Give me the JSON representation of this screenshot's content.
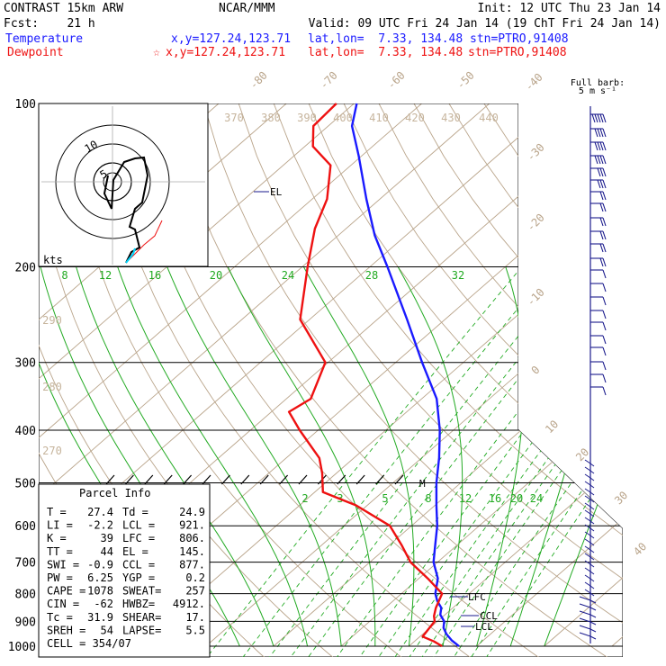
{
  "header": {
    "model": "CONTRAST 15km ARW",
    "center": "NCAR/MMM",
    "init": "Init: 12 UTC Thu 23 Jan 14",
    "fcst": "Fcst:    21 h",
    "valid": "Valid: 09 UTC Fri 24 Jan 14 (19 ChT Fri 24 Jan 14)",
    "temp_label": "Temperature",
    "temp_xy": "x,y=127.24,123.71",
    "temp_latlon": "lat,lon=  7.33, 134.48",
    "temp_stn": "stn=PTRO,91408",
    "dew_label": "Dewpoint",
    "dew_xy": "x,y=127.24,123.71",
    "dew_latlon": "lat,lon=  7.33, 134.48",
    "dew_stn": "stn=PTRO,91408",
    "full_barb": "Full barb:",
    "barb_unit": "5 m s⁻¹",
    "star_icon": "star-icon"
  },
  "colors": {
    "temperature": "#1a1aff",
    "dewpoint": "#ee1111",
    "isotherm": "#b9a48a",
    "mixing_ratio": "#22aa22",
    "wind": "#1a1a8c",
    "hodograph_trace": "#000000",
    "hodograph_low": "#00d8ff"
  },
  "hodograph": {
    "units": "kts",
    "ring_labels": [
      "5",
      "10"
    ]
  },
  "parcel_info": {
    "title": "Parcel Info",
    "rows": [
      [
        "T  =",
        "27.4",
        "Td =",
        "24.9"
      ],
      [
        "LI =",
        "-2.2",
        "LCL =",
        "921."
      ],
      [
        "K  =",
        "39",
        "LFC =",
        "806."
      ],
      [
        "TT =",
        "44",
        "EL =",
        "145."
      ],
      [
        "SWI =",
        "-0.9",
        "CCL =",
        "877."
      ],
      [
        "PW =",
        "6.25",
        "YGP =",
        "0.2"
      ],
      [
        "CAPE =",
        "1078",
        "SWEAT=",
        "257"
      ],
      [
        "CIN =",
        "-62",
        "HWBZ=",
        "4912."
      ],
      [
        "Tc =",
        "31.9",
        "SHEAR=",
        "17."
      ],
      [
        "SREH =",
        "54",
        "LAPSE=",
        "5.5"
      ],
      [
        "CELL = 354/07",
        "",
        "",
        ""
      ]
    ]
  },
  "level_markers": {
    "el": "EL",
    "lfc": "LFC",
    "ccl": "CCL",
    "lcl": "LCL",
    "m": "M"
  },
  "chart_data": {
    "type": "line",
    "title": "CONTRAST 15km ARW",
    "ylabel": "",
    "xlabel": "",
    "pressure_levels": [
      "100",
      "200",
      "300",
      "400",
      "500",
      "600",
      "700",
      "800",
      "900",
      "1000"
    ],
    "isotherm_labels": [
      "-80",
      "-70",
      "-60",
      "-50",
      "-40",
      "-30",
      "-20",
      "-10",
      "0",
      "10",
      "20",
      "30",
      "40"
    ],
    "theta_labels": [
      "370",
      "380",
      "390",
      "400",
      "410",
      "420",
      "430",
      "440",
      "290",
      "280",
      "270"
    ],
    "mixing_ratio_upper": [
      "8",
      "12",
      "16",
      "20",
      "24",
      "28",
      "32"
    ],
    "mixing_ratio_lower": [
      "2",
      "3",
      "5",
      "8",
      "12",
      "16",
      "20",
      "24"
    ],
    "series": [
      {
        "name": "Temperature",
        "color": "#1a1aff",
        "points": [
          [
            1000,
            27.4
          ],
          [
            975,
            25.3
          ],
          [
            950,
            23.5
          ],
          [
            925,
            22.0
          ],
          [
            900,
            21.0
          ],
          [
            875,
            19.3
          ],
          [
            850,
            18.3
          ],
          [
            825,
            16.5
          ],
          [
            800,
            15.0
          ],
          [
            750,
            12.8
          ],
          [
            700,
            9.4
          ],
          [
            650,
            6.7
          ],
          [
            600,
            3.8
          ],
          [
            550,
            0.2
          ],
          [
            500,
            -3.6
          ],
          [
            450,
            -7.4
          ],
          [
            400,
            -12.0
          ],
          [
            350,
            -17.8
          ],
          [
            300,
            -26.1
          ],
          [
            250,
            -35.6
          ],
          [
            200,
            -47.4
          ],
          [
            175,
            -54.6
          ],
          [
            150,
            -62.0
          ],
          [
            125,
            -70.4
          ],
          [
            110,
            -76.5
          ],
          [
            100,
            -79.6
          ]
        ]
      },
      {
        "name": "Dewpoint",
        "color": "#ee1111",
        "points": [
          [
            1000,
            24.9
          ],
          [
            980,
            22.9
          ],
          [
            960,
            20.4
          ],
          [
            930,
            20.0
          ],
          [
            900,
            19.6
          ],
          [
            880,
            18.6
          ],
          [
            850,
            17.5
          ],
          [
            800,
            16.0
          ],
          [
            750,
            11.3
          ],
          [
            700,
            6.0
          ],
          [
            650,
            1.7
          ],
          [
            600,
            -3.2
          ],
          [
            550,
            -11.7
          ],
          [
            520,
            -18.8
          ],
          [
            480,
            -22.1
          ],
          [
            450,
            -25.1
          ],
          [
            400,
            -32.7
          ],
          [
            370,
            -37.4
          ],
          [
            350,
            -36.4
          ],
          [
            300,
            -40.4
          ],
          [
            250,
            -51.4
          ],
          [
            200,
            -59.2
          ],
          [
            170,
            -64.6
          ],
          [
            150,
            -67.8
          ],
          [
            130,
            -73.0
          ],
          [
            120,
            -78.8
          ],
          [
            110,
            -82.2
          ],
          [
            100,
            -82.6
          ]
        ]
      }
    ],
    "hodograph_shown": true
  }
}
